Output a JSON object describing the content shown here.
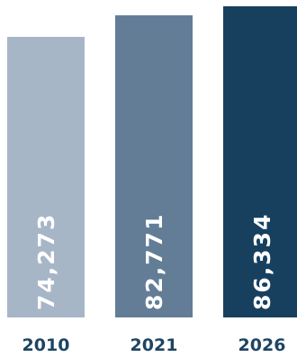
{
  "chart_data": {
    "type": "bar",
    "categories": [
      "2010",
      "2021",
      "2026"
    ],
    "values": [
      74273,
      82771,
      86334
    ],
    "value_labels": [
      "74,273",
      "82,771",
      "86,334"
    ],
    "colors": [
      "#a7b6c7",
      "#637d97",
      "#17405f"
    ],
    "tick_color": "#1d4563",
    "title": "",
    "xlabel": "",
    "ylabel": "",
    "grid": false,
    "legend": "none"
  }
}
